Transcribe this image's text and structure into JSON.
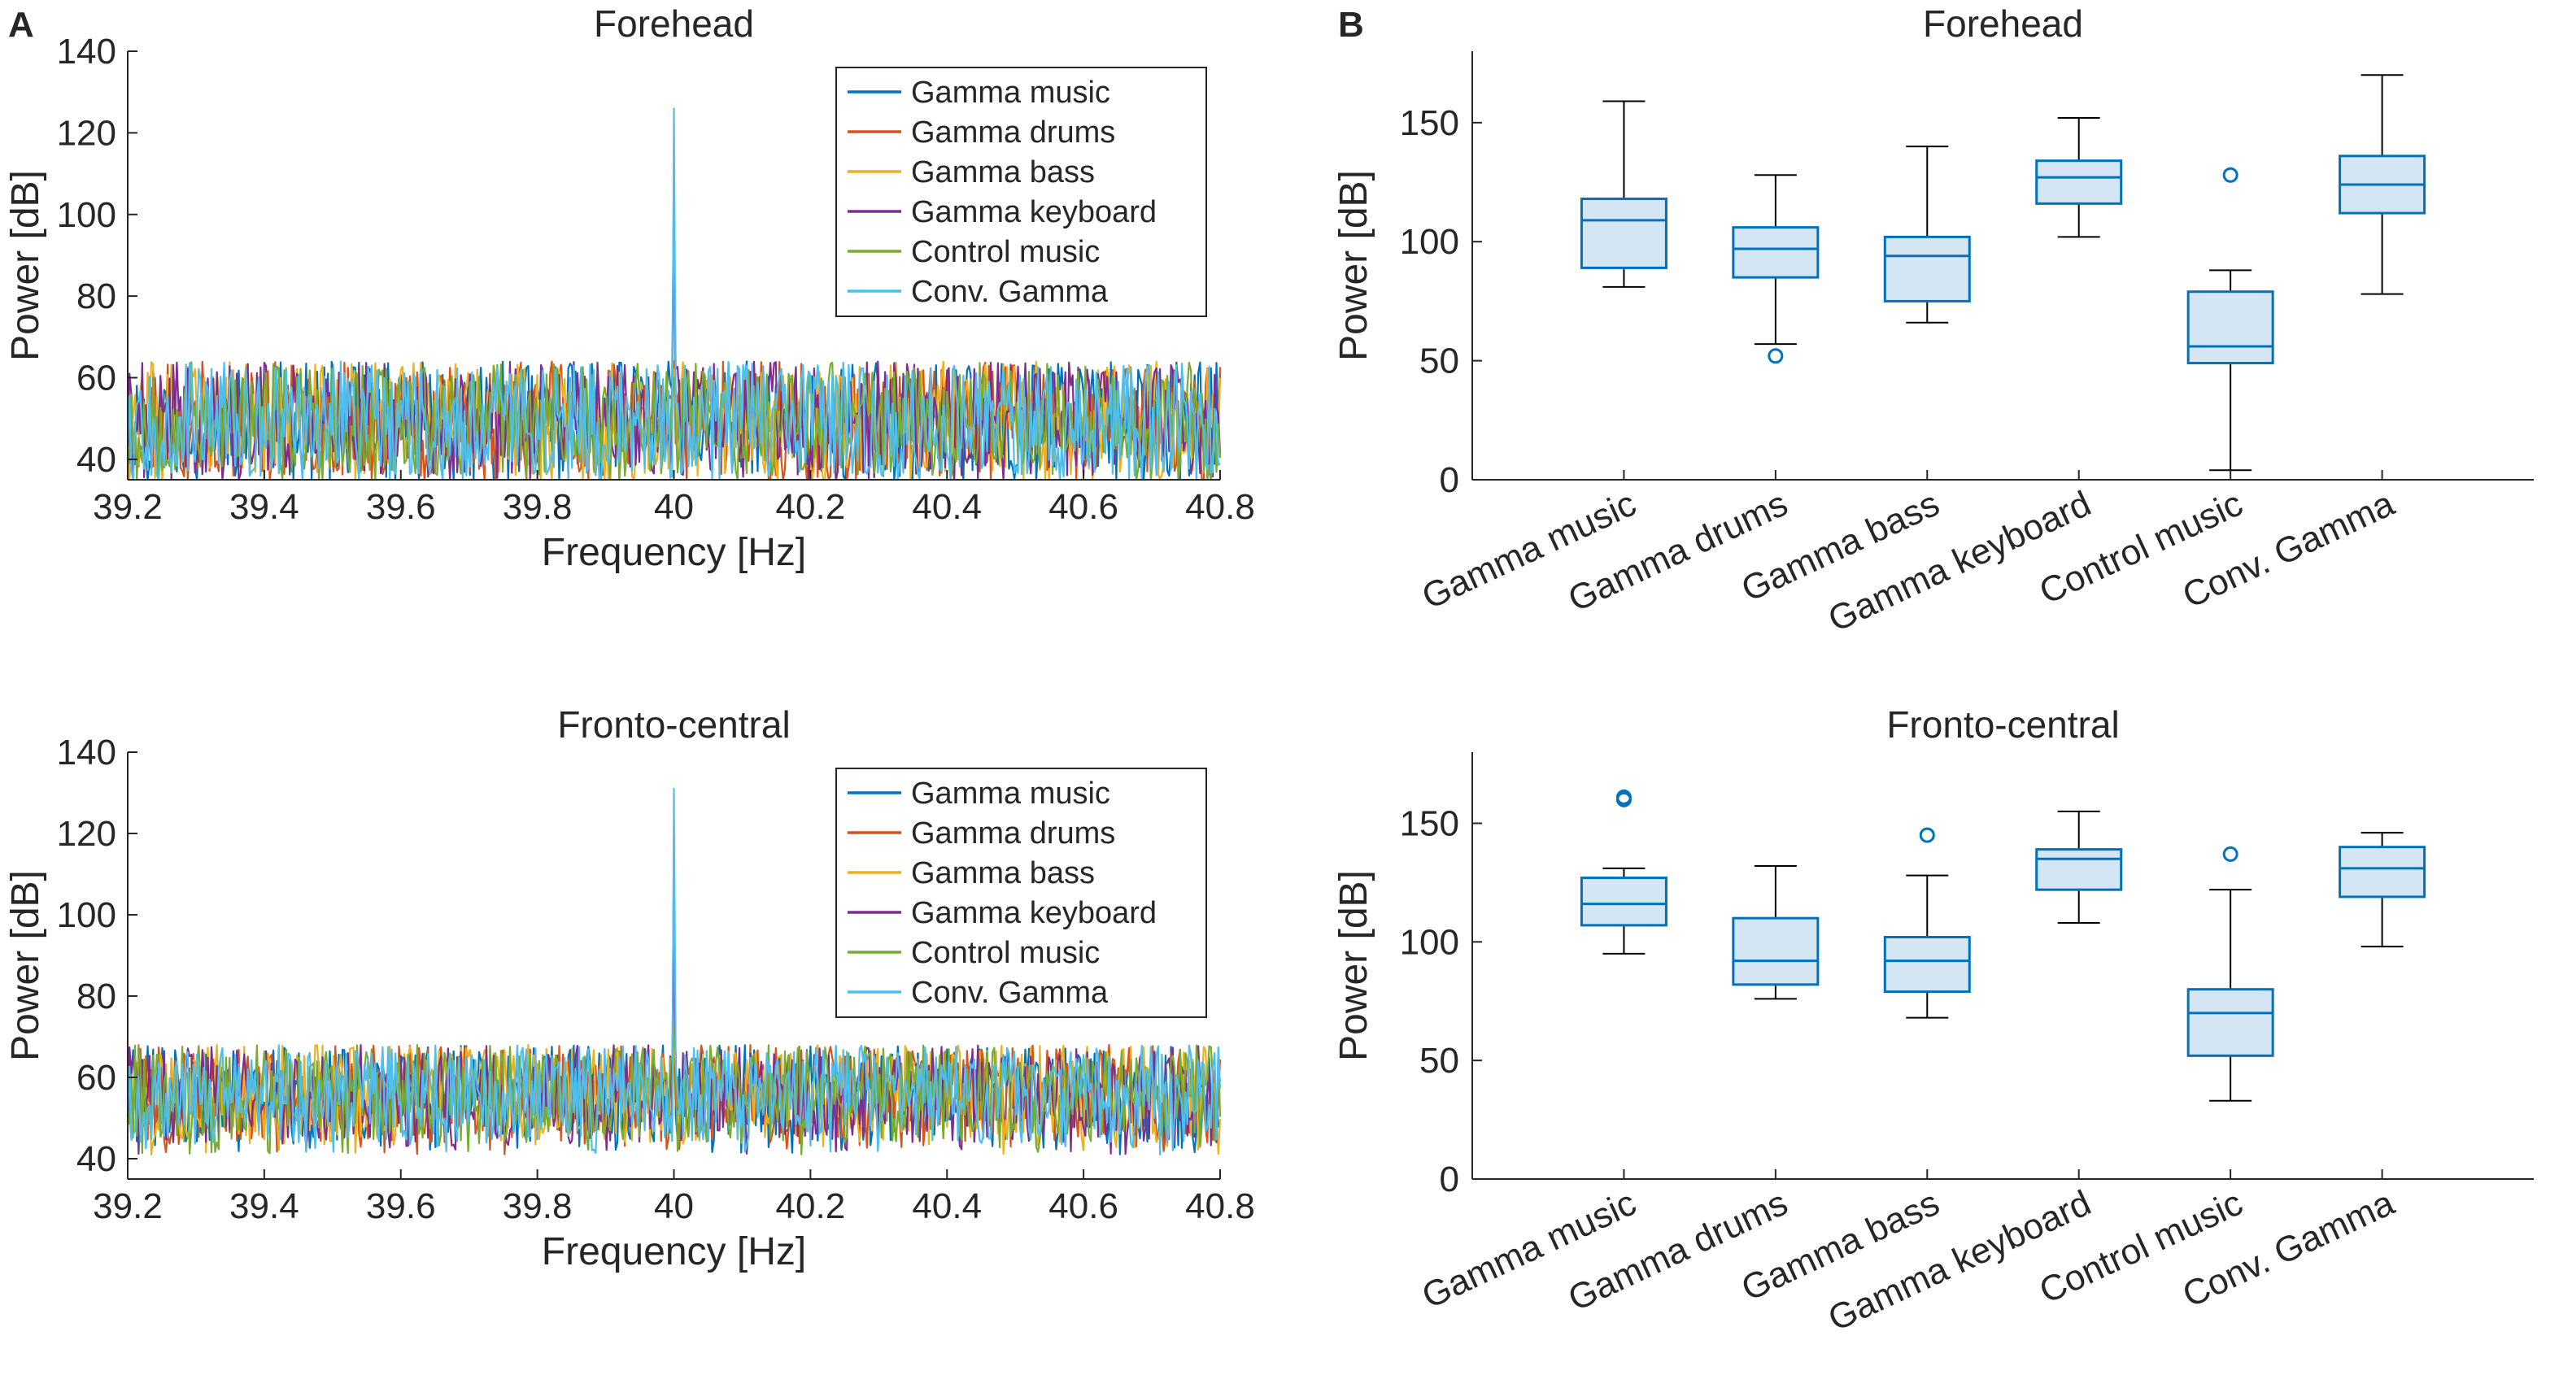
{
  "panel_labels": [
    "A",
    "B"
  ],
  "chart_data": [
    {
      "type": "line",
      "panel": "A",
      "title": "Forehead",
      "xlabel": "Frequency [Hz]",
      "ylabel": "Power [dB]",
      "xlim": [
        39.2,
        40.8
      ],
      "ylim": [
        35,
        140
      ],
      "xticks": [
        39.2,
        39.4,
        39.6,
        39.8,
        40,
        40.2,
        40.4,
        40.6,
        40.8
      ],
      "xtick_labels": [
        "39.2",
        "39.4",
        "39.6",
        "39.8",
        "40",
        "40.2",
        "40.4",
        "40.6",
        "40.8"
      ],
      "yticks": [
        40,
        60,
        80,
        100,
        120,
        140
      ],
      "ytick_labels": [
        "40",
        "60",
        "80",
        "100",
        "120",
        "140"
      ],
      "legend_position": "top-right",
      "noise_band": [
        36,
        64
      ],
      "peak_x": 40.0,
      "series": [
        {
          "name": "Gamma music",
          "color": "#0072BD",
          "peak": 110,
          "seed": 11
        },
        {
          "name": "Gamma drums",
          "color": "#D95319",
          "peak": 64,
          "seed": 23
        },
        {
          "name": "Gamma bass",
          "color": "#EDB120",
          "peak": 62,
          "seed": 37
        },
        {
          "name": "Gamma keyboard",
          "color": "#7E2F8E",
          "peak": 95,
          "seed": 41
        },
        {
          "name": "Control music",
          "color": "#77AC30",
          "peak": 60,
          "seed": 53
        },
        {
          "name": "Conv. Gamma",
          "color": "#4DBEEE",
          "peak": 126,
          "seed": 67
        }
      ]
    },
    {
      "type": "line",
      "panel": "A",
      "title": "Fronto-central",
      "xlabel": "Frequency [Hz]",
      "ylabel": "Power [dB]",
      "xlim": [
        39.2,
        40.8
      ],
      "ylim": [
        35,
        140
      ],
      "xticks": [
        39.2,
        39.4,
        39.6,
        39.8,
        40,
        40.2,
        40.4,
        40.6,
        40.8
      ],
      "xtick_labels": [
        "39.2",
        "39.4",
        "39.6",
        "39.8",
        "40",
        "40.2",
        "40.4",
        "40.6",
        "40.8"
      ],
      "yticks": [
        40,
        60,
        80,
        100,
        120,
        140
      ],
      "ytick_labels": [
        "40",
        "60",
        "80",
        "100",
        "120",
        "140"
      ],
      "legend_position": "top-right",
      "noise_band": [
        44,
        68
      ],
      "peak_x": 40.0,
      "series": [
        {
          "name": "Gamma music",
          "color": "#0072BD",
          "peak": 119,
          "seed": 71
        },
        {
          "name": "Gamma drums",
          "color": "#D95319",
          "peak": 72,
          "seed": 83
        },
        {
          "name": "Gamma bass",
          "color": "#EDB120",
          "peak": 73,
          "seed": 97
        },
        {
          "name": "Gamma keyboard",
          "color": "#7E2F8E",
          "peak": 97,
          "seed": 101
        },
        {
          "name": "Control music",
          "color": "#77AC30",
          "peak": 70,
          "seed": 113
        },
        {
          "name": "Conv. Gamma",
          "color": "#4DBEEE",
          "peak": 131,
          "seed": 127
        }
      ]
    },
    {
      "type": "box",
      "panel": "B",
      "title": "Forehead",
      "ylabel": "Power [dB]",
      "ylim": [
        0,
        180
      ],
      "yticks": [
        0,
        50,
        100,
        150
      ],
      "ytick_labels": [
        "0",
        "50",
        "100",
        "150"
      ],
      "categories": [
        "Gamma music",
        "Gamma drums",
        "Gamma bass",
        "Gamma keyboard",
        "Control music",
        "Conv. Gamma"
      ],
      "box_color": "#0072BD",
      "box_fill": "#D4E5F3",
      "outlier_color": "#0072BD",
      "boxes": [
        {
          "min": 81,
          "q1": 89,
          "median": 109,
          "q3": 118,
          "max": 159,
          "outliers": []
        },
        {
          "min": 57,
          "q1": 85,
          "median": 97,
          "q3": 106,
          "max": 128,
          "outliers": [
            52
          ]
        },
        {
          "min": 66,
          "q1": 75,
          "median": 94,
          "q3": 102,
          "max": 140,
          "outliers": []
        },
        {
          "min": 102,
          "q1": 116,
          "median": 127,
          "q3": 134,
          "max": 152,
          "outliers": []
        },
        {
          "min": 4,
          "q1": 49,
          "median": 56,
          "q3": 79,
          "max": 88,
          "outliers": [
            128
          ]
        },
        {
          "min": 78,
          "q1": 112,
          "median": 124,
          "q3": 136,
          "max": 170,
          "outliers": []
        }
      ]
    },
    {
      "type": "box",
      "panel": "B",
      "title": "Fronto-central",
      "ylabel": "Power [dB]",
      "ylim": [
        0,
        180
      ],
      "yticks": [
        0,
        50,
        100,
        150
      ],
      "ytick_labels": [
        "0",
        "50",
        "100",
        "150"
      ],
      "categories": [
        "Gamma music",
        "Gamma drums",
        "Gamma bass",
        "Gamma keyboard",
        "Control music",
        "Conv. Gamma"
      ],
      "box_color": "#0072BD",
      "box_fill": "#D4E5F3",
      "outlier_color": "#0072BD",
      "boxes": [
        {
          "min": 95,
          "q1": 107,
          "median": 116,
          "q3": 127,
          "max": 131,
          "outliers": [
            160,
            161
          ]
        },
        {
          "min": 76,
          "q1": 82,
          "median": 92,
          "q3": 110,
          "max": 132,
          "outliers": []
        },
        {
          "min": 68,
          "q1": 79,
          "median": 92,
          "q3": 102,
          "max": 128,
          "outliers": [
            145
          ]
        },
        {
          "min": 108,
          "q1": 122,
          "median": 135,
          "q3": 139,
          "max": 155,
          "outliers": []
        },
        {
          "min": 33,
          "q1": 52,
          "median": 70,
          "q3": 80,
          "max": 122,
          "outliers": [
            137
          ]
        },
        {
          "min": 98,
          "q1": 119,
          "median": 131,
          "q3": 140,
          "max": 146,
          "outliers": []
        }
      ]
    }
  ]
}
